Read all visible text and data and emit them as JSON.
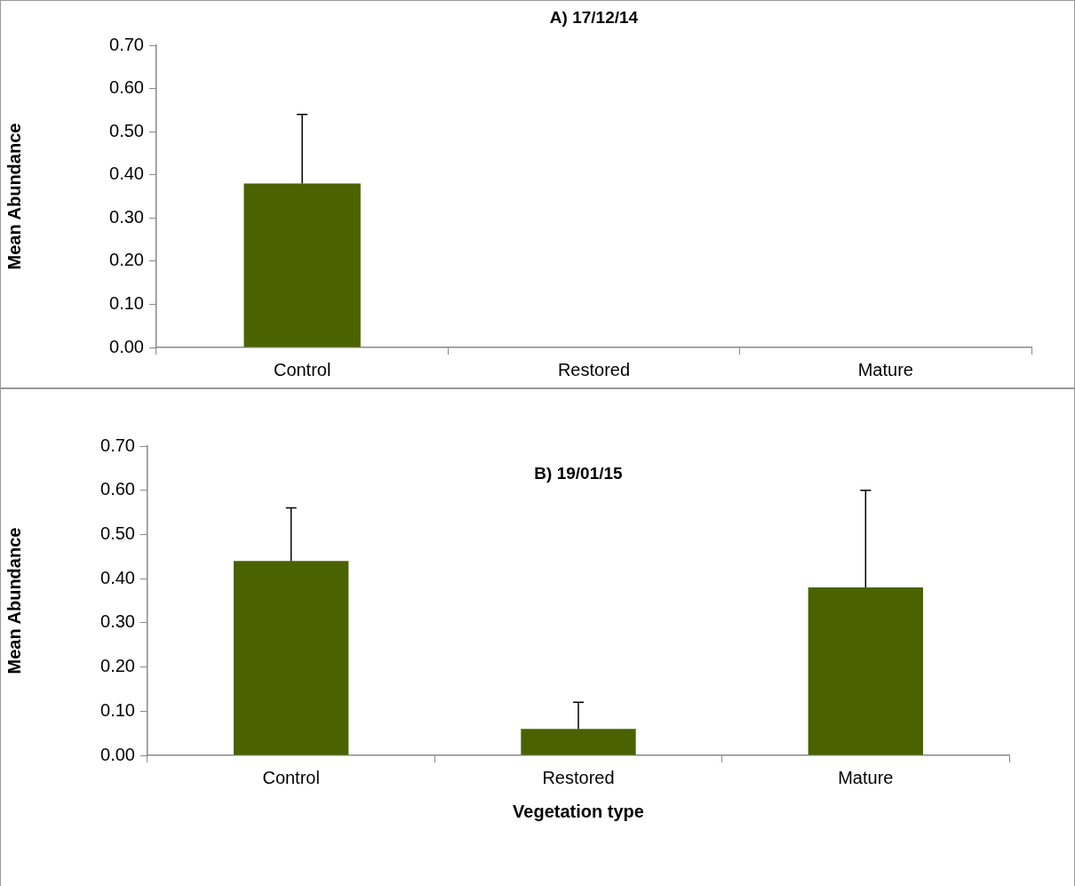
{
  "chart_data": [
    {
      "type": "bar",
      "title": "A) 17/12/14",
      "ylabel": "Mean Abundance",
      "categories": [
        "Control",
        "Restored",
        "Mature"
      ],
      "values": [
        0.38,
        0,
        0
      ],
      "color": "#4a6200",
      "errors": [
        [
          0.38,
          0.54
        ],
        null,
        null
      ],
      "ylim": [
        0,
        0.7
      ],
      "yticks": [
        {
          "value": 0,
          "label": "0.00"
        },
        {
          "value": 0.1,
          "label": "0.10"
        },
        {
          "value": 0.2,
          "label": "0.20"
        },
        {
          "value": 0.3,
          "label": "0.30"
        },
        {
          "value": 0.4,
          "label": "0.40"
        },
        {
          "value": 0.5,
          "label": "0.50"
        },
        {
          "value": 0.6,
          "label": "0.60"
        },
        {
          "value": 0.7,
          "label": "0.70"
        }
      ],
      "grid": false,
      "legend": false
    },
    {
      "type": "bar",
      "title": "B) 19/01/15",
      "xlabel": "Vegetation type",
      "ylabel": "Mean Abundance",
      "categories": [
        "Control",
        "Restored",
        "Mature"
      ],
      "values": [
        0.44,
        0.06,
        0.38
      ],
      "color": "#4a6200",
      "errors": [
        [
          0.44,
          0.56
        ],
        [
          0.06,
          0.12
        ],
        [
          0.38,
          0.6
        ]
      ],
      "ylim": [
        0,
        0.7
      ],
      "yticks": [
        {
          "value": 0,
          "label": "0.00"
        },
        {
          "value": 0.1,
          "label": "0.10"
        },
        {
          "value": 0.2,
          "label": "0.20"
        },
        {
          "value": 0.3,
          "label": "0.30"
        },
        {
          "value": 0.4,
          "label": "0.40"
        },
        {
          "value": 0.5,
          "label": "0.50"
        },
        {
          "value": 0.6,
          "label": "0.60"
        },
        {
          "value": 0.7,
          "label": "0.70"
        }
      ],
      "grid": false,
      "legend": false
    }
  ]
}
